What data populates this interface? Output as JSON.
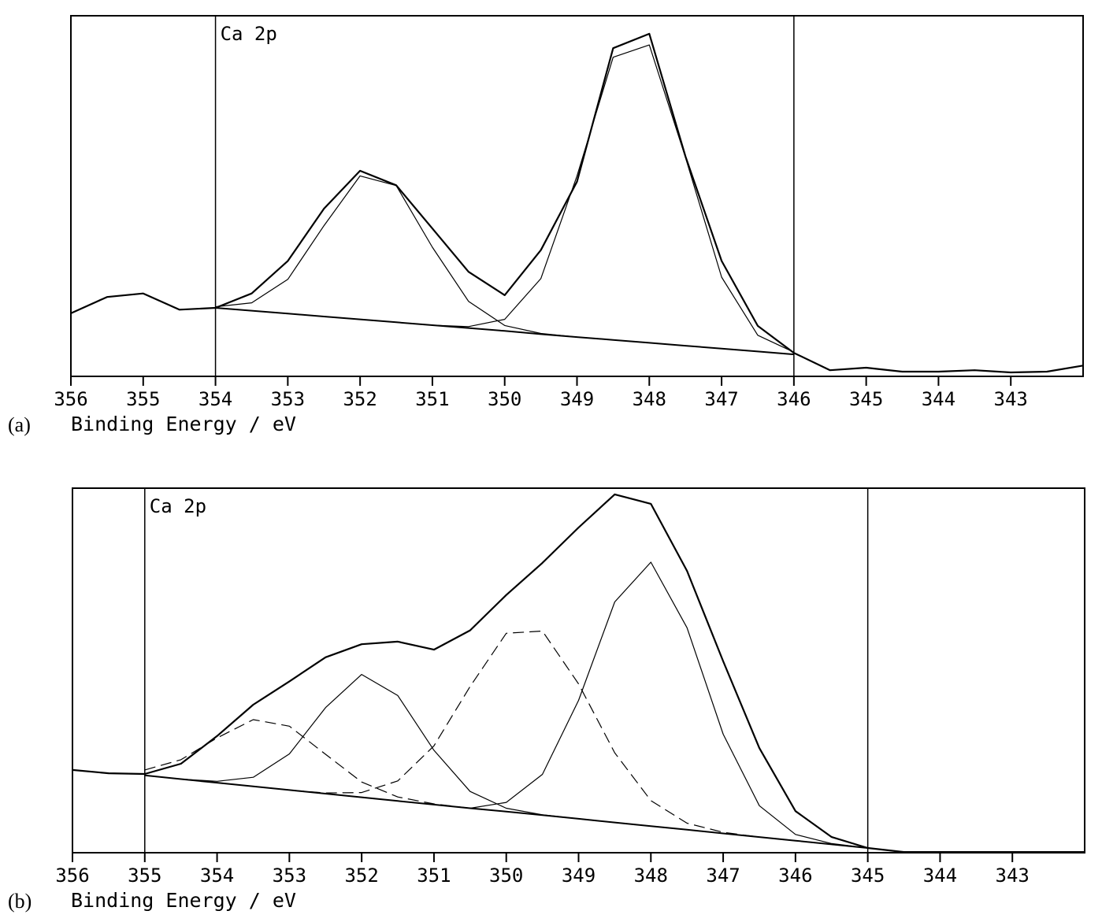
{
  "chart_data": [
    {
      "type": "line",
      "label": "(a)",
      "xlabel": "Binding Energy / eV",
      "annotation": "Ca 2p",
      "x": [
        356,
        355.5,
        355,
        354.5,
        354,
        353.5,
        353,
        352.5,
        352,
        351.5,
        351,
        350.5,
        350,
        349.5,
        349,
        348.5,
        348,
        347.5,
        347,
        346.5,
        346,
        345.5,
        345,
        344.5,
        344,
        343.5,
        343,
        342.5,
        342
      ],
      "xlim": [
        356,
        342
      ],
      "xticks": [
        356,
        355,
        354,
        353,
        352,
        351,
        350,
        349,
        348,
        347,
        346,
        345,
        344,
        343
      ],
      "ylim": [
        0,
        100
      ],
      "region": [
        354,
        346
      ],
      "series": [
        {
          "color": "#000000",
          "width": 2.2,
          "dash": false,
          "values": [
            17.5,
            22,
            23,
            18.5,
            19,
            23,
            32,
            46.5,
            57,
            53,
            41,
            29,
            22.5,
            35,
            54,
            91,
            95,
            61,
            32,
            14,
            6.5,
            1.7,
            2.4,
            1.3,
            1.3,
            1.7,
            1.1,
            1.3,
            3
          ]
        },
        {
          "color": "#000000",
          "width": 2,
          "dash": false,
          "values": [
            null,
            null,
            null,
            null,
            19,
            18.2,
            17.4,
            16.6,
            15.8,
            15,
            14.2,
            13.4,
            12.6,
            11.7,
            10.9,
            10.1,
            9.3,
            8.5,
            7.7,
            6.9,
            6.1,
            null,
            null,
            null,
            null,
            null,
            null,
            null,
            null
          ]
        },
        {
          "color": "#000000",
          "width": 1.2,
          "dash": false,
          "values": [
            null,
            null,
            null,
            null,
            19.3,
            20.4,
            26.9,
            41.8,
            55.6,
            52.9,
            35.8,
            20.8,
            14.1,
            11.9,
            10.9,
            10.1,
            9.3,
            8.5,
            7.7,
            6.9,
            6.1,
            null,
            null,
            null,
            null,
            null,
            null,
            null,
            null
          ]
        },
        {
          "color": "#000000",
          "width": 1.2,
          "dash": false,
          "values": [
            null,
            null,
            null,
            null,
            19,
            18.2,
            17.4,
            16.6,
            15.8,
            15,
            14.2,
            13.8,
            15.8,
            27.1,
            55.6,
            88.5,
            91.9,
            60.7,
            27.5,
            11.4,
            6.7,
            null,
            null,
            null,
            null,
            null,
            null,
            null,
            null
          ]
        }
      ]
    },
    {
      "type": "line",
      "label": "(b)",
      "xlabel": "Binding Energy / eV",
      "annotation": "Ca 2p",
      "x": [
        356,
        355.5,
        355,
        354.5,
        354,
        353.5,
        353,
        352.5,
        352,
        351.5,
        351,
        350.5,
        350,
        349.5,
        349,
        348.5,
        348,
        347.5,
        347,
        346.5,
        346,
        345.5,
        345,
        344.5,
        344,
        343.5,
        343,
        342.5,
        342
      ],
      "xlim": [
        356,
        342
      ],
      "xticks": [
        356,
        355,
        354,
        353,
        352,
        351,
        350,
        349,
        348,
        347,
        346,
        345,
        344,
        343
      ],
      "ylim": [
        0,
        100
      ],
      "region": [
        355,
        345
      ],
      "series": [
        {
          "color": "#000000",
          "width": 2.2,
          "dash": false,
          "values": [
            22.7,
            21.8,
            21.6,
            24.4,
            32,
            40.6,
            47,
            53.6,
            57.2,
            57.9,
            55.7,
            61,
            70.7,
            79.5,
            89.2,
            98.3,
            95.7,
            77.3,
            52.5,
            28.7,
            11.4,
            4.3,
            1.3,
            0.2,
            0.2,
            0.2,
            0.2,
            0.2,
            0.2
          ]
        },
        {
          "color": "#000000",
          "width": 2,
          "dash": false,
          "values": [
            null,
            null,
            21.2,
            20.2,
            19.2,
            18.2,
            17.2,
            16.2,
            15.2,
            14.2,
            13.2,
            12.2,
            11.3,
            10.3,
            9.3,
            8.3,
            7.3,
            6.3,
            5.3,
            4.3,
            3.3,
            2.3,
            1.3,
            null,
            null,
            null,
            null,
            null,
            null
          ]
        },
        {
          "color": "#000000",
          "width": 1.2,
          "dash": true,
          "values": [
            null,
            null,
            22.7,
            25.5,
            31.5,
            36.5,
            34.7,
            27,
            19.4,
            15.3,
            13.4,
            12.2,
            11.3,
            10.3,
            9.3,
            8.3,
            7.3,
            6.3,
            5.3,
            4.3,
            3.3,
            2.3,
            1.3,
            null,
            null,
            null,
            null,
            null,
            null
          ]
        },
        {
          "color": "#000000",
          "width": 1.2,
          "dash": false,
          "values": [
            null,
            null,
            21.2,
            20.2,
            19.6,
            20.7,
            27.1,
            39.8,
            48.9,
            43.1,
            28.1,
            16.8,
            12.2,
            10.4,
            9.3,
            8.3,
            7.3,
            6.3,
            5.3,
            4.3,
            3.3,
            2.3,
            1.3,
            null,
            null,
            null,
            null,
            null,
            null
          ]
        },
        {
          "color": "#000000",
          "width": 1.2,
          "dash": true,
          "values": [
            null,
            null,
            21.2,
            20.2,
            19.2,
            18.2,
            17.2,
            16.4,
            16.5,
            19.7,
            29.3,
            45.6,
            60.2,
            60.8,
            46.3,
            27.4,
            14.3,
            8.1,
            5.6,
            4.3,
            3.3,
            2.3,
            1.3,
            null,
            null,
            null,
            null,
            null,
            null
          ]
        },
        {
          "color": "#000000",
          "width": 1.2,
          "dash": false,
          "values": [
            null,
            null,
            21.2,
            20.2,
            19.2,
            18.2,
            17.2,
            16.2,
            15.2,
            14.2,
            13.2,
            12.2,
            13.8,
            21.5,
            41.8,
            68.8,
            79.7,
            61.7,
            32.5,
            12.9,
            5,
            2.5,
            1.3,
            null,
            null,
            null,
            null,
            null,
            null
          ]
        }
      ]
    }
  ]
}
